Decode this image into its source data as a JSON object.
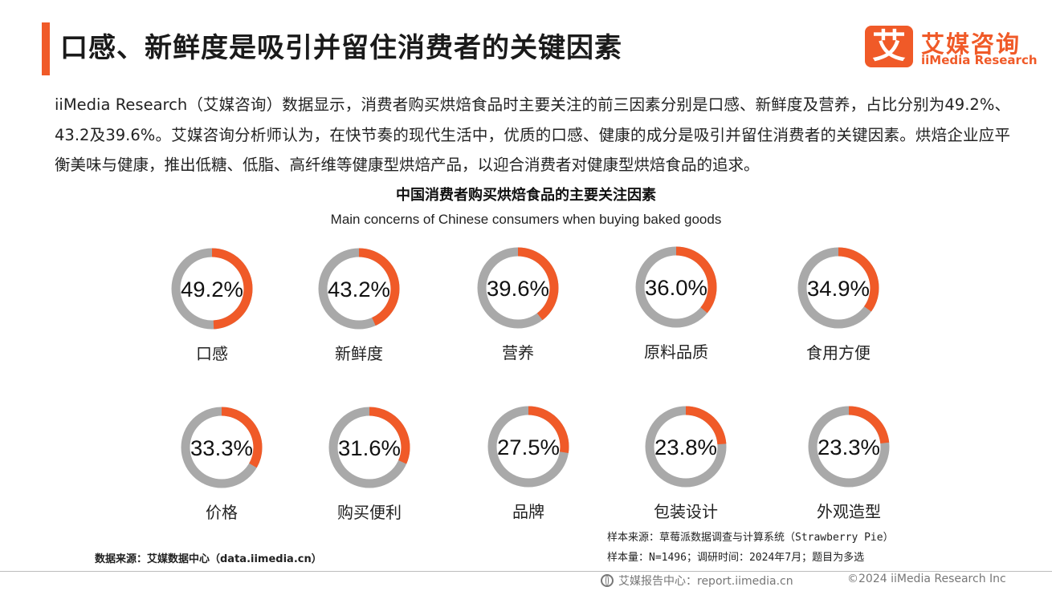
{
  "header": {
    "title": "口感、新鲜度是吸引并留住消费者的关键因素"
  },
  "logo": {
    "mark": "艾",
    "cn": "艾媒咨询",
    "en": "iiMedia Research"
  },
  "intro": "iiMedia Research（艾媒咨询）数据显示，消费者购买烘焙食品时主要关注的前三因素分别是口感、新鲜度及营养，占比分别为49.2%、43.2及39.6%。艾媒咨询分析师认为，在快节奏的现代生活中，优质的口感、健康的成分是吸引并留住消费者的关键因素。烘焙企业应平衡美味与健康，推出低糖、低脂、高纤维等健康型烘焙产品，以迎合消费者对健康型烘焙食品的追求。",
  "chart_data": {
    "type": "pie",
    "title": "中国消费者购买烘焙食品的主要关注因素",
    "subtitle": "Main concerns of Chinese consumers when buying baked goods",
    "unit": "%",
    "categories": [
      "口感",
      "新鲜度",
      "营养",
      "原料品质",
      "食用方便",
      "价格",
      "购买便利",
      "品牌",
      "包装设计",
      "外观造型"
    ],
    "values": [
      49.2,
      43.2,
      39.6,
      36.0,
      34.9,
      33.3,
      31.6,
      27.5,
      23.8,
      23.3
    ],
    "value_labels": [
      "49.2%",
      "43.2%",
      "39.6%",
      "36.0%",
      "34.9%",
      "33.3%",
      "31.6%",
      "27.5%",
      "23.8%",
      "23.3%"
    ],
    "colors": {
      "value": "#f05a28",
      "remainder": "#a9a9a9"
    }
  },
  "footer": {
    "source": "数据来源：艾媒数据中心（data.iimedia.cn）",
    "sample_source": "样本来源：草莓派数据调查与计算系统（Strawberry Pie）",
    "sample_size": "样本量：N=1496；调研时间：2024年7月；题目为多选",
    "report_center": "艾媒报告中心：report.iimedia.cn",
    "copyright": "©2024  iiMedia Research  Inc"
  }
}
